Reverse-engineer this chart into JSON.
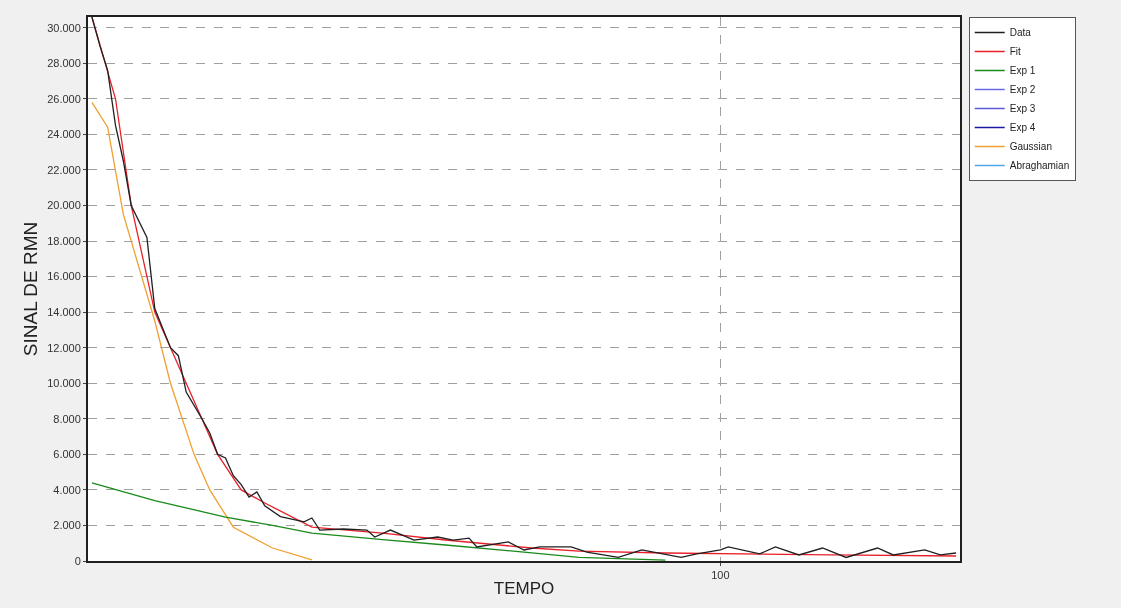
{
  "chart_data": {
    "type": "line",
    "xlabel": "TEMPO",
    "ylabel": "SINAL DE RMN",
    "categories": [
      null,
      null,
      null,
      null,
      null,
      null,
      null,
      null,
      null,
      null,
      null,
      null,
      null,
      null,
      null,
      null,
      null,
      null,
      null,
      null,
      null,
      null,
      null,
      null,
      null,
      null,
      null,
      null,
      null,
      null,
      null,
      null,
      null,
      null,
      null,
      null,
      null,
      null,
      null,
      null,
      null,
      null,
      null,
      null,
      null,
      null,
      null,
      null,
      null,
      null,
      null,
      null,
      null,
      null,
      null,
      null,
      null,
      null,
      null,
      null,
      null,
      null,
      null,
      null,
      null,
      null,
      null,
      null,
      null,
      null,
      null,
      null,
      null,
      null,
      null,
      null,
      null,
      null,
      null,
      null,
      "100",
      null,
      null,
      null,
      null,
      null,
      null,
      null,
      null,
      null,
      null,
      null,
      null,
      null,
      null,
      null,
      null,
      null,
      null,
      null,
      null,
      null,
      null,
      null,
      null,
      null,
      null,
      null,
      null,
      null,
      null
    ],
    "ylim": [
      0,
      30600
    ],
    "yticks": [
      {
        "value": 0,
        "label": "0"
      },
      {
        "value": 2000,
        "label": "2.000"
      },
      {
        "value": 4000,
        "label": "4.000"
      },
      {
        "value": 6000,
        "label": "6.000"
      },
      {
        "value": 8000,
        "label": "8.000"
      },
      {
        "value": 10000,
        "label": "10.000"
      },
      {
        "value": 12000,
        "label": "12.000"
      },
      {
        "value": 14000,
        "label": "14.000"
      },
      {
        "value": 16000,
        "label": "16.000"
      },
      {
        "value": 18000,
        "label": "18.000"
      },
      {
        "value": 20000,
        "label": "20.000"
      },
      {
        "value": 22000,
        "label": "22.000"
      },
      {
        "value": 24000,
        "label": "24.000"
      },
      {
        "value": 26000,
        "label": "26.000"
      },
      {
        "value": 28000,
        "label": "28.000"
      },
      {
        "value": 30000,
        "label": "30.000"
      }
    ],
    "grid": true,
    "legend": "top right",
    "marker": "none",
    "line_style": "solid",
    "series": [
      {
        "name": "Data",
        "color": "#202020",
        "values": [
          30600,
          29000,
          27600,
          24500,
          22500,
          20000,
          null,
          18200,
          14200,
          null,
          12000,
          11550,
          9500,
          null,
          8000,
          7200,
          6000,
          5800,
          4800,
          4300,
          3600,
          3880,
          3100,
          null,
          2500,
          null,
          null,
          2200,
          2420,
          1740,
          null,
          null,
          1800,
          null,
          null,
          1740,
          1350,
          null,
          1740,
          null,
          null,
          1180,
          null,
          null,
          1350,
          null,
          1180,
          null,
          1290,
          790,
          null,
          null,
          null,
          1070,
          null,
          620,
          null,
          800,
          null,
          null,
          null,
          790,
          null,
          500,
          null,
          null,
          null,
          200,
          null,
          null,
          620,
          null,
          null,
          null,
          null,
          200,
          null,
          400,
          null,
          null,
          620,
          790,
          null,
          null,
          null,
          400,
          null,
          790,
          null,
          null,
          340,
          null,
          null,
          730,
          null,
          null,
          200,
          null,
          null,
          null,
          730,
          null,
          340,
          null,
          null,
          null,
          620,
          null,
          340,
          null,
          450
        ]
      },
      {
        "name": "Fit",
        "color": "#e8202a",
        "values": [
          30600,
          null,
          null,
          26000,
          null,
          20000,
          null,
          null,
          14000,
          null,
          12000,
          null,
          null,
          null,
          8000,
          null,
          6000,
          null,
          null,
          4000,
          null,
          null,
          3260,
          null,
          null,
          null,
          null,
          null,
          1910,
          null,
          null,
          null,
          null,
          null,
          null,
          null,
          null,
          1570,
          null,
          null,
          null,
          null,
          null,
          null,
          null,
          1180,
          null,
          null,
          null,
          null,
          null,
          null,
          null,
          null,
          null,
          null,
          730,
          null,
          null,
          null,
          null,
          null,
          560,
          null,
          null,
          null,
          null,
          null,
          null,
          null,
          null,
          null,
          null,
          450,
          null,
          null,
          null,
          null,
          null,
          null,
          null,
          null,
          null,
          null,
          null,
          null,
          null,
          null,
          null,
          null,
          null,
          null,
          null,
          null,
          340,
          null,
          null,
          null,
          null,
          null,
          null,
          null,
          null,
          null,
          null,
          null,
          null,
          null,
          null,
          null,
          280
        ]
      },
      {
        "name": "Exp 1",
        "color": "#1a8a1a",
        "values": [
          4400,
          null,
          null,
          null,
          null,
          null,
          null,
          null,
          3400,
          null,
          null,
          null,
          null,
          null,
          null,
          null,
          null,
          2470,
          null,
          null,
          null,
          null,
          null,
          2000,
          null,
          null,
          null,
          null,
          1570,
          null,
          null,
          null,
          null,
          null,
          null,
          null,
          null,
          1200,
          null,
          null,
          null,
          null,
          null,
          null,
          null,
          900,
          null,
          null,
          null,
          null,
          null,
          null,
          null,
          null,
          null,
          500,
          null,
          null,
          null,
          null,
          null,
          null,
          200,
          null,
          null,
          null,
          null,
          null,
          null,
          null,
          null,
          null,
          null,
          50,
          null,
          null,
          null,
          null,
          null,
          null,
          null,
          null,
          null,
          null,
          null,
          null,
          null,
          null,
          null,
          null,
          null,
          null,
          null,
          null,
          null,
          null,
          null,
          null,
          null,
          null,
          null,
          null,
          null,
          null,
          null,
          null,
          null,
          null,
          null,
          null,
          null
        ]
      },
      {
        "name": "Exp 2",
        "color": "#6a6ae8",
        "values": [
          null,
          null,
          null,
          null,
          null,
          null,
          null,
          null,
          null,
          null,
          null,
          null,
          null,
          null,
          null,
          null,
          null,
          null,
          null,
          null,
          null,
          null,
          null,
          null,
          null,
          null,
          null,
          null,
          null,
          null,
          null,
          null,
          null,
          null,
          null,
          null,
          null,
          null,
          null,
          null,
          null,
          null,
          null,
          null,
          null,
          null,
          null,
          null,
          null,
          null,
          null,
          null,
          null,
          null,
          null,
          null,
          null,
          null,
          null,
          null,
          null,
          null,
          null,
          null,
          null,
          null,
          null,
          null,
          null,
          null,
          null,
          null,
          null,
          null,
          null,
          null,
          null,
          null,
          null,
          null,
          null,
          null,
          null,
          null,
          null,
          null,
          null,
          null,
          null,
          null,
          null,
          null,
          null,
          null,
          null,
          null,
          null,
          null,
          null,
          null,
          null,
          null,
          null,
          null,
          null,
          null,
          null,
          null,
          null,
          null,
          null
        ]
      },
      {
        "name": "Exp 3",
        "color": "#5a5ad8",
        "values": [
          null,
          null,
          null,
          null,
          null,
          null,
          null,
          null,
          null,
          null,
          null,
          null,
          null,
          null,
          null,
          null,
          null,
          null,
          null,
          null,
          null,
          null,
          null,
          null,
          null,
          null,
          null,
          null,
          null,
          null,
          null,
          null,
          null,
          null,
          null,
          null,
          null,
          null,
          null,
          null,
          null,
          null,
          null,
          null,
          null,
          null,
          null,
          null,
          null,
          null,
          null,
          null,
          null,
          null,
          null,
          null,
          null,
          null,
          null,
          null,
          null,
          null,
          null,
          null,
          null,
          null,
          null,
          null,
          null,
          null,
          null,
          null,
          null,
          null,
          null,
          null,
          null,
          null,
          null,
          null,
          null,
          null,
          null,
          null,
          null,
          null,
          null,
          null,
          null,
          null,
          null,
          null,
          null,
          null,
          null,
          null,
          null,
          null,
          null,
          null,
          null,
          null,
          null,
          null,
          null,
          null,
          null,
          null,
          null,
          null,
          null
        ]
      },
      {
        "name": "Exp 4",
        "color": "#1a1aa0",
        "values": [
          null,
          null,
          null,
          null,
          null,
          null,
          null,
          null,
          null,
          null,
          null,
          null,
          null,
          null,
          null,
          null,
          null,
          null,
          null,
          null,
          null,
          null,
          null,
          null,
          null,
          null,
          null,
          null,
          null,
          null,
          null,
          null,
          null,
          null,
          null,
          null,
          null,
          null,
          null,
          null,
          null,
          null,
          null,
          null,
          null,
          null,
          null,
          null,
          null,
          null,
          null,
          null,
          null,
          null,
          null,
          null,
          null,
          null,
          null,
          null,
          null,
          null,
          null,
          null,
          null,
          null,
          null,
          null,
          null,
          null,
          null,
          null,
          null,
          null,
          null,
          null,
          null,
          null,
          null,
          null,
          null,
          null,
          null,
          null,
          null,
          null,
          null,
          null,
          null,
          null,
          null,
          null,
          null,
          null,
          null,
          null,
          null,
          null,
          null,
          null,
          null,
          null,
          null,
          null,
          null,
          null,
          null,
          null,
          null,
          null,
          null
        ]
      },
      {
        "name": "Gaussian",
        "color": "#f0a030",
        "values": [
          25800,
          null,
          24400,
          null,
          19500,
          null,
          null,
          null,
          13500,
          null,
          10000,
          null,
          null,
          6000,
          null,
          4000,
          null,
          null,
          1900,
          null,
          null,
          null,
          null,
          730,
          null,
          null,
          null,
          null,
          60,
          null,
          null,
          null,
          null,
          null,
          null,
          null,
          null,
          null,
          null,
          null,
          null,
          null,
          null,
          null,
          null,
          null,
          null,
          null,
          null,
          null,
          null,
          null,
          null,
          null,
          null,
          null,
          null,
          null,
          null,
          null,
          null,
          null,
          null,
          null,
          null,
          null,
          null,
          null,
          null,
          null,
          null,
          null,
          null,
          null,
          null,
          null,
          null,
          null,
          null,
          null,
          null,
          null,
          null,
          null,
          null,
          null,
          null,
          null,
          null,
          null,
          null,
          null,
          null,
          null,
          null,
          null,
          null,
          null,
          null,
          null,
          null,
          null,
          null,
          null,
          null,
          null,
          null,
          null,
          null,
          null,
          null
        ]
      },
      {
        "name": "Abraghamian",
        "color": "#50a8e8",
        "values": [
          null,
          null,
          null,
          null,
          null,
          null,
          null,
          null,
          null,
          null,
          null,
          null,
          null,
          null,
          null,
          null,
          null,
          null,
          null,
          null,
          null,
          null,
          null,
          null,
          null,
          null,
          null,
          null,
          null,
          null,
          null,
          null,
          null,
          null,
          null,
          null,
          null,
          null,
          null,
          null,
          null,
          null,
          null,
          null,
          null,
          null,
          null,
          null,
          null,
          null,
          null,
          null,
          null,
          null,
          null,
          null,
          null,
          null,
          null,
          null,
          null,
          null,
          null,
          null,
          null,
          null,
          null,
          null,
          null,
          null,
          null,
          null,
          null,
          null,
          null,
          null,
          null,
          null,
          null,
          null,
          null,
          null,
          null,
          null,
          null,
          null,
          null,
          null,
          null,
          null,
          null,
          null,
          null,
          null,
          null,
          null,
          null,
          null,
          null,
          null,
          null,
          null,
          null,
          null,
          null,
          null,
          null,
          null,
          null,
          null,
          null
        ]
      }
    ]
  }
}
